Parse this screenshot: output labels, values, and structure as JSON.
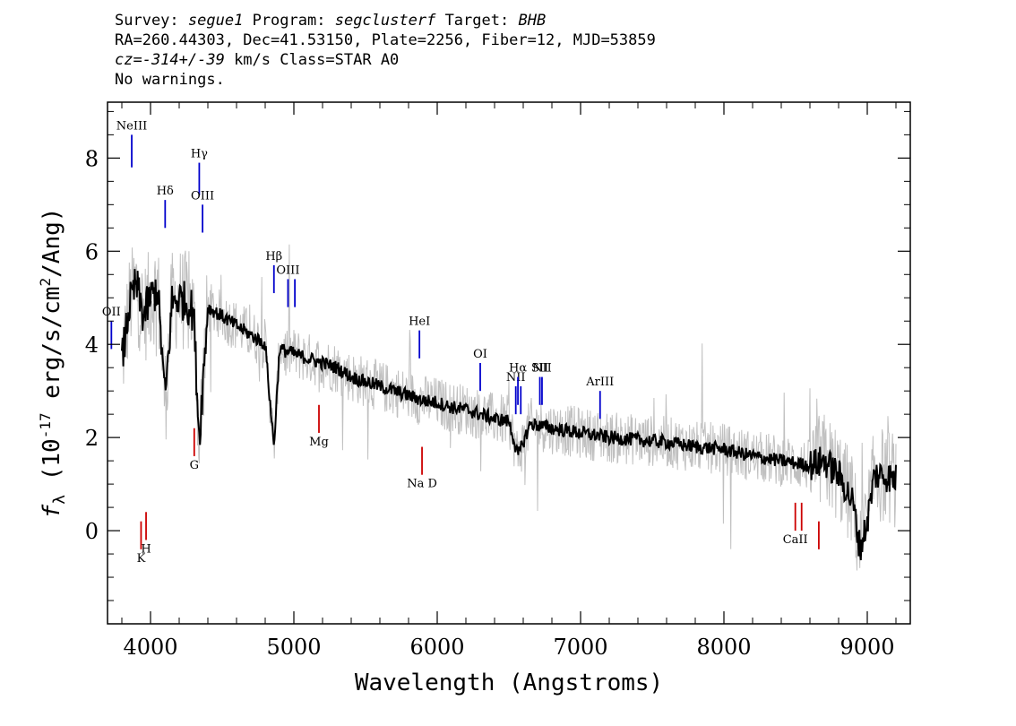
{
  "header": {
    "survey_label": "Survey:",
    "survey": "segue1",
    "program_label": "Program:",
    "program": "segclusterf",
    "target_label": "Target:",
    "target": "BHB",
    "line2": "RA=260.44303, Dec=41.53150, Plate=2256, Fiber=12, MJD=53859",
    "redshift": "cz=-314+/-39",
    "line3_rest": " km/s Class=STAR A0",
    "line4": "No warnings."
  },
  "chart_data": {
    "type": "line",
    "xlabel": "Wavelength (Angstroms)",
    "ylabel": "f_λ (10^-17 erg/s/cm^2/Ang)",
    "xlim": [
      3700,
      9300
    ],
    "ylim": [
      -2.0,
      9.2
    ],
    "xticks": [
      4000,
      5000,
      6000,
      7000,
      8000,
      9000
    ],
    "yticks": [
      0,
      2,
      4,
      6,
      8
    ],
    "grid": false,
    "colors": {
      "data": "#c0c0c0",
      "model": "#000000",
      "emission": "#0000cc",
      "absorption": "#cc0000"
    },
    "series": [
      {
        "role": "smoothed",
        "x": [
          3800,
          3850,
          3900,
          3950,
          4000,
          4050,
          4102,
          4150,
          4200,
          4250,
          4300,
          4340,
          4400,
          4500,
          4600,
          4700,
          4800,
          4861,
          4900,
          5000,
          5100,
          5200,
          5300,
          5400,
          5500,
          5600,
          5700,
          5800,
          5900,
          6000,
          6100,
          6200,
          6300,
          6400,
          6500,
          6563,
          6650,
          6800,
          7000,
          7200,
          7400,
          7600,
          7800,
          8000,
          8200,
          8400,
          8600,
          8700,
          8800,
          8900,
          8950,
          9000,
          9050,
          9100,
          9200
        ],
        "y": [
          3.6,
          4.8,
          5.3,
          4.6,
          5.0,
          5.2,
          2.8,
          4.9,
          5.0,
          4.9,
          4.7,
          2.0,
          4.8,
          4.6,
          4.4,
          4.2,
          4.0,
          1.8,
          3.9,
          3.8,
          3.7,
          3.6,
          3.5,
          3.3,
          3.2,
          3.1,
          3.0,
          2.9,
          2.8,
          2.75,
          2.65,
          2.6,
          2.5,
          2.4,
          2.35,
          1.6,
          2.3,
          2.2,
          2.1,
          2.0,
          1.95,
          1.9,
          1.8,
          1.75,
          1.6,
          1.5,
          1.4,
          1.5,
          1.2,
          0.6,
          -0.4,
          0.2,
          1.2,
          1.2,
          1.1
        ]
      }
    ],
    "emission_lines": [
      {
        "label": "NeIII",
        "wavelength": 3869,
        "y1": 7.8,
        "y2": 8.5
      },
      {
        "label": "Hδ",
        "wavelength": 4102,
        "y1": 6.5,
        "y2": 7.1
      },
      {
        "label": "Hγ",
        "wavelength": 4340,
        "y1": 7.2,
        "y2": 7.9
      },
      {
        "label": "OIII",
        "wavelength": 4363,
        "y1": 6.4,
        "y2": 7.0
      },
      {
        "label": "Hβ",
        "wavelength": 4861,
        "y1": 5.1,
        "y2": 5.7
      },
      {
        "label": "OIII",
        "wavelength": 4959,
        "y1": 4.8,
        "y2": 5.4
      },
      {
        "label": "",
        "wavelength": 5007,
        "y1": 4.8,
        "y2": 5.4
      },
      {
        "label": "HeI",
        "wavelength": 5876,
        "y1": 3.7,
        "y2": 4.3
      },
      {
        "label": "OI",
        "wavelength": 6300,
        "y1": 3.0,
        "y2": 3.6
      },
      {
        "label": "NII",
        "wavelength": 6548,
        "y1": 2.5,
        "y2": 3.1
      },
      {
        "label": "Hα",
        "wavelength": 6563,
        "y1": 2.7,
        "y2": 3.3
      },
      {
        "label": "",
        "wavelength": 6583,
        "y1": 2.5,
        "y2": 3.1
      },
      {
        "label": "SII",
        "wavelength": 6716,
        "y1": 2.7,
        "y2": 3.3
      },
      {
        "label": "NII",
        "wavelength": 6731,
        "y1": 2.7,
        "y2": 3.3
      },
      {
        "label": "ArIII",
        "wavelength": 7136,
        "y1": 2.4,
        "y2": 3.0
      },
      {
        "label": "OII",
        "wavelength": 3727,
        "y1": 3.9,
        "y2": 4.5
      }
    ],
    "absorption_lines": [
      {
        "label": "K",
        "wavelength": 3934,
        "y1": -0.4,
        "y2": 0.2
      },
      {
        "label": "H",
        "wavelength": 3969,
        "y1": -0.2,
        "y2": 0.4
      },
      {
        "label": "G",
        "wavelength": 4305,
        "y1": 1.6,
        "y2": 2.2
      },
      {
        "label": "Mg",
        "wavelength": 5175,
        "y1": 2.1,
        "y2": 2.7
      },
      {
        "label": "Na D",
        "wavelength": 5894,
        "y1": 1.2,
        "y2": 1.8
      },
      {
        "label": "CaII",
        "wavelength": 8498,
        "y1": 0.0,
        "y2": 0.6
      },
      {
        "label": "",
        "wavelength": 8542,
        "y1": 0.0,
        "y2": 0.6
      },
      {
        "label": "",
        "wavelength": 8662,
        "y1": -0.4,
        "y2": 0.2
      }
    ]
  }
}
